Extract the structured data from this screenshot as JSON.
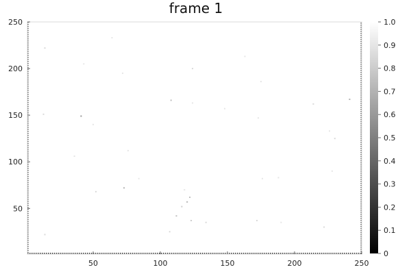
{
  "chart_data": {
    "type": "heatmap",
    "title": "frame 1",
    "xlabel": "",
    "ylabel": "",
    "x_range": [
      1,
      250
    ],
    "y_range": [
      1,
      250
    ],
    "x_ticks": [
      50,
      100,
      150,
      200,
      250
    ],
    "y_ticks": [
      50,
      100,
      150,
      200,
      250
    ],
    "colorbar": {
      "range": [
        0,
        1
      ],
      "ticks": [
        0,
        0.1,
        0.2,
        0.3,
        0.4,
        0.5,
        0.6,
        0.7,
        0.8,
        0.9,
        1.0
      ],
      "tick_labels": [
        "0",
        "0.1",
        "0.2",
        "0.3",
        "0.4",
        "0.5",
        "0.6",
        "0.7",
        "0.8",
        "0.9",
        "1.0"
      ],
      "colormap": "grayscale"
    },
    "background_value": 1.0,
    "notes": "Field is nearly uniform at value 1 (white) with sparse faint gray speckles; left, right and bottom borders show dark dotted pixels.",
    "speckles": [
      {
        "x": 14,
        "y": 222,
        "v": 0.85
      },
      {
        "x": 64,
        "y": 233,
        "v": 0.9
      },
      {
        "x": 43,
        "y": 205,
        "v": 0.9
      },
      {
        "x": 72,
        "y": 195,
        "v": 0.9
      },
      {
        "x": 124,
        "y": 200,
        "v": 0.85
      },
      {
        "x": 163,
        "y": 213,
        "v": 0.9
      },
      {
        "x": 175,
        "y": 186,
        "v": 0.9
      },
      {
        "x": 13,
        "y": 151,
        "v": 0.85
      },
      {
        "x": 41,
        "y": 149,
        "v": 0.6
      },
      {
        "x": 108,
        "y": 166,
        "v": 0.75
      },
      {
        "x": 124,
        "y": 163,
        "v": 0.9
      },
      {
        "x": 148,
        "y": 157,
        "v": 0.9
      },
      {
        "x": 173,
        "y": 147,
        "v": 0.9
      },
      {
        "x": 214,
        "y": 162,
        "v": 0.85
      },
      {
        "x": 241,
        "y": 167,
        "v": 0.7
      },
      {
        "x": 226,
        "y": 133,
        "v": 0.9
      },
      {
        "x": 230,
        "y": 125,
        "v": 0.85
      },
      {
        "x": 50,
        "y": 140,
        "v": 0.9
      },
      {
        "x": 76,
        "y": 112,
        "v": 0.9
      },
      {
        "x": 36,
        "y": 106,
        "v": 0.9
      },
      {
        "x": 73,
        "y": 72,
        "v": 0.7
      },
      {
        "x": 84,
        "y": 82,
        "v": 0.9
      },
      {
        "x": 52,
        "y": 68,
        "v": 0.85
      },
      {
        "x": 118,
        "y": 70,
        "v": 0.9
      },
      {
        "x": 122,
        "y": 62,
        "v": 0.75
      },
      {
        "x": 120,
        "y": 57,
        "v": 0.7
      },
      {
        "x": 116,
        "y": 52,
        "v": 0.8
      },
      {
        "x": 112,
        "y": 42,
        "v": 0.75
      },
      {
        "x": 123,
        "y": 37,
        "v": 0.8
      },
      {
        "x": 134,
        "y": 35,
        "v": 0.85
      },
      {
        "x": 107,
        "y": 25,
        "v": 0.85
      },
      {
        "x": 172,
        "y": 37,
        "v": 0.85
      },
      {
        "x": 190,
        "y": 35,
        "v": 0.9
      },
      {
        "x": 222,
        "y": 30,
        "v": 0.85
      },
      {
        "x": 14,
        "y": 22,
        "v": 0.85
      },
      {
        "x": 176,
        "y": 82,
        "v": 0.9
      },
      {
        "x": 188,
        "y": 83,
        "v": 0.9
      },
      {
        "x": 228,
        "y": 90,
        "v": 0.9
      }
    ]
  }
}
